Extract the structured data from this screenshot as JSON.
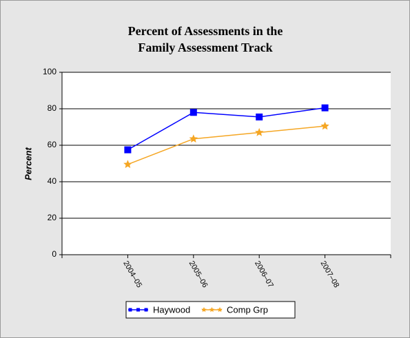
{
  "chart_data": {
    "type": "line",
    "title": [
      "Percent of Assessments in the",
      "Family Assessment Track"
    ],
    "y_label": "Percent",
    "categories": [
      "2004–05",
      "2005–06",
      "2006–07",
      "2007–08"
    ],
    "series": [
      {
        "name": "Haywood",
        "color": "#0000ff",
        "marker": "square",
        "values": [
          57.5,
          78,
          75.5,
          80.5
        ]
      },
      {
        "name": "Comp Grp",
        "color": "#f5a623",
        "marker": "star",
        "values": [
          49.5,
          63.5,
          67,
          70.5
        ]
      }
    ],
    "ylim": [
      0,
      100
    ],
    "yticks": [
      0,
      20,
      40,
      60,
      80,
      100
    ],
    "grid": true,
    "legend": "bottom"
  }
}
